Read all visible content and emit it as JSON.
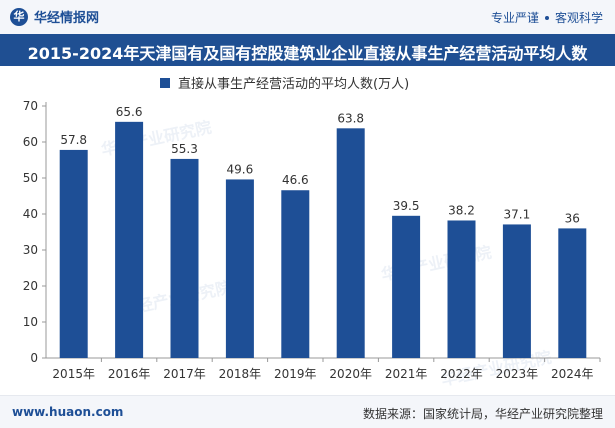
{
  "header": {
    "brand": "华经情报网",
    "tagline_left": "专业严谨",
    "tagline_right": "客观科学"
  },
  "chart_data": {
    "type": "bar",
    "title": "2015-2024年天津国有及国有控股建筑业企业直接从事生产经营活动平均人数",
    "categories": [
      "2015年",
      "2016年",
      "2017年",
      "2018年",
      "2019年",
      "2020年",
      "2021年",
      "2022年",
      "2023年",
      "2024年"
    ],
    "series": [
      {
        "name": "直接从事生产经营活动的平均人数(万人)",
        "values": [
          57.8,
          65.6,
          55.3,
          49.6,
          46.6,
          63.8,
          39.5,
          38.2,
          37.1,
          36
        ],
        "labels": [
          "57.8",
          "65.6",
          "55.3",
          "49.6",
          "46.6",
          "63.8",
          "39.5",
          "38.2",
          "37.1",
          "36"
        ]
      }
    ],
    "ylim": [
      0,
      70
    ],
    "yticks": [
      0,
      10,
      20,
      30,
      40,
      50,
      60,
      70
    ],
    "grid": false,
    "legend": "top-center",
    "bar_color": "#1e4f96"
  },
  "footer": {
    "url": "www.huaon.com",
    "source": "数据来源：国家统计局，华经产业研究院整理"
  },
  "watermark": "华经产业研究院"
}
